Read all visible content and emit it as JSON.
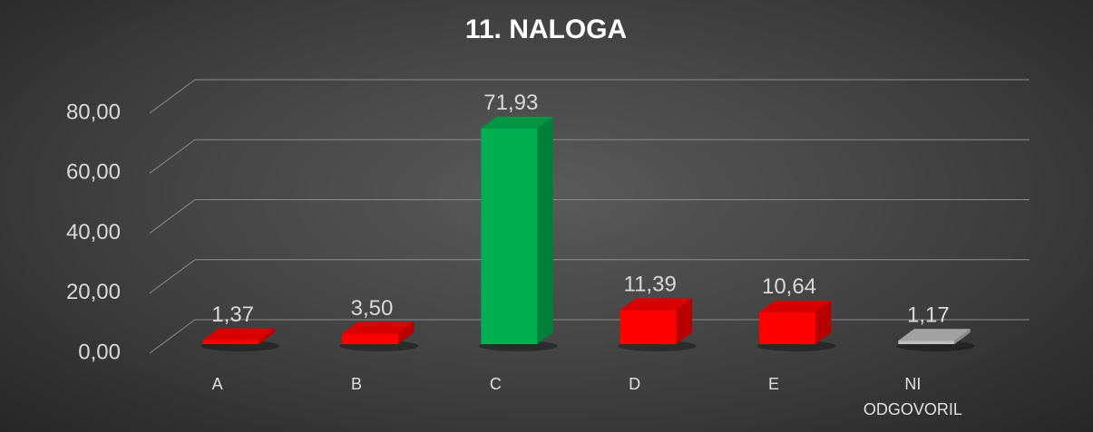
{
  "chart_data": {
    "type": "bar3d",
    "title": "11. NALOGA",
    "categories": [
      "A",
      "B",
      "C",
      "D",
      "E",
      "NI ODGOVORIL"
    ],
    "values": [
      1.37,
      3.5,
      71.93,
      11.39,
      10.64,
      1.17
    ],
    "value_labels": [
      "1,37",
      "3,50",
      "71,93",
      "11,39",
      "10,64",
      "1,17"
    ],
    "colors": [
      "#ff0000",
      "#ff0000",
      "#00b050",
      "#ff0000",
      "#ff0000",
      "#bfbfbf"
    ],
    "ylim": [
      0,
      80
    ],
    "yticks": [
      {
        "value": 0,
        "label": "0,00"
      },
      {
        "value": 20,
        "label": "20,00"
      },
      {
        "value": 40,
        "label": "40,00"
      },
      {
        "value": 60,
        "label": "60,00"
      },
      {
        "value": 80,
        "label": "80,00"
      }
    ],
    "grid": true
  }
}
